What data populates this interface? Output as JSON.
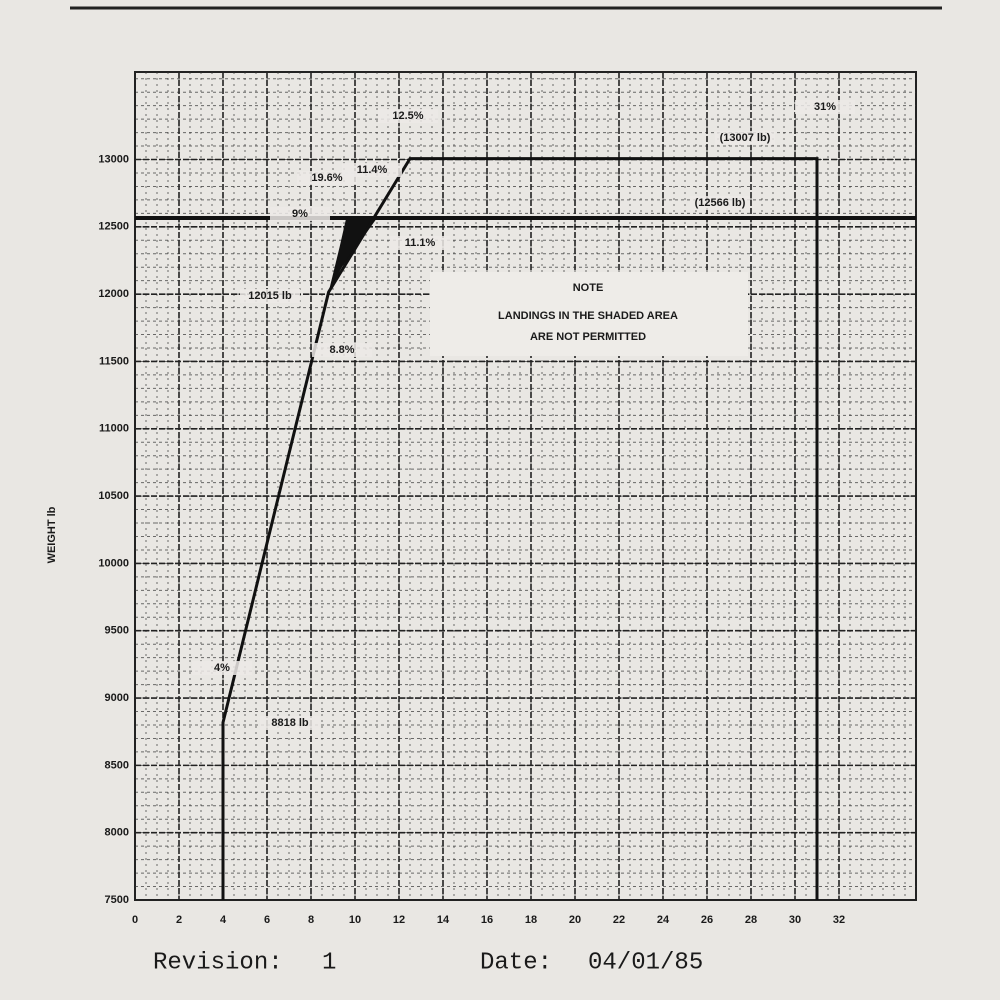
{
  "chart_data": {
    "type": "line",
    "y_label": "WEIGHT lb",
    "xlim": [
      0,
      35.5
    ],
    "ylim": [
      7500,
      13650
    ],
    "xticks": [
      0,
      2,
      4,
      6,
      8,
      10,
      12,
      14,
      16,
      18,
      20,
      22,
      24,
      26,
      28,
      30,
      32
    ],
    "yticks": [
      7500,
      8000,
      8500,
      9000,
      9500,
      10000,
      10500,
      11000,
      11500,
      12000,
      12500,
      13000
    ],
    "grid": true,
    "series": [
      {
        "color": "#111111",
        "x": [
          4,
          4,
          8.8,
          12.5,
          31,
          31
        ],
        "values": [
          7500,
          8818,
          12015,
          13007,
          13007,
          7500
        ]
      },
      {
        "color": "#111111",
        "x": [
          0,
          35.5
        ],
        "values": [
          12566,
          12566
        ]
      }
    ],
    "shaded_region": {
      "color": "#111111",
      "x": [
        8.8,
        9.3,
        9.6,
        11,
        10.5,
        9.4
      ],
      "y": [
        12015,
        12350,
        12566,
        12566,
        12450,
        12200
      ]
    },
    "annotations": [
      "12.5%",
      "31%",
      "(13007 lb)",
      "19.6%",
      "11.4%",
      "(12566 lb)",
      "9%",
      "11.1%",
      "12015 lb",
      "8.8%",
      "4%",
      "8818 lb"
    ],
    "note": {
      "title": "NOTE",
      "lines": [
        "LANDINGS IN THE SHADED AREA",
        "ARE NOT PERMITTED"
      ]
    }
  },
  "footer": {
    "revision_label": "Revision:",
    "revision": "1",
    "date_label": "Date:",
    "date": "04/01/85"
  }
}
